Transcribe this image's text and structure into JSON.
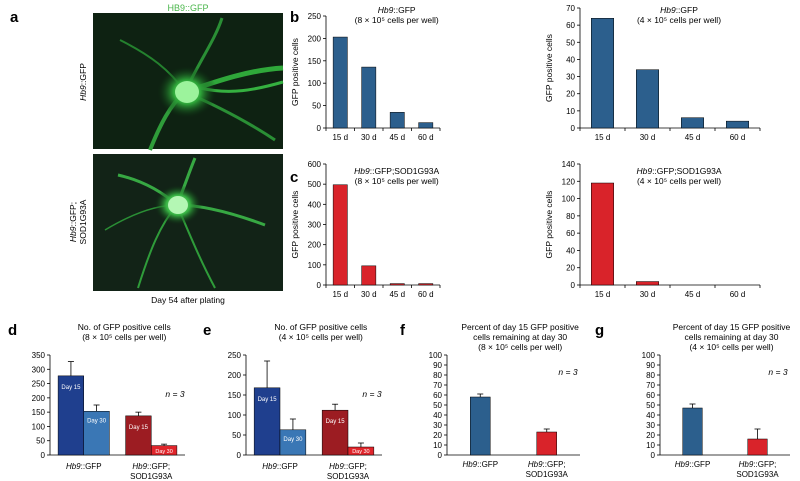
{
  "colors": {
    "blue": "#2c5f8d",
    "red": "#d9232a",
    "darkblue": "#1f3f8e",
    "lightblue": "#3a77b5",
    "darkred": "#9c1c22",
    "brightred": "#e0252b",
    "green": "#49b64a"
  },
  "panels": {
    "a": {
      "letter": "a",
      "top_label": "HB9::GFP",
      "row1_label_italic": "Hb9",
      "row1_label_rest": "::GFP",
      "row2_label_italic": "Hb9",
      "row2_label_rest": "::GFP;",
      "row2_label_line2": "SOD1G93A",
      "caption": "Day 54 after plating"
    },
    "b_letter": "b",
    "c_letter": "c",
    "d_letter": "d",
    "e_letter": "e",
    "f_letter": "f",
    "g_letter": "g"
  },
  "chart_data": [
    {
      "id": "b1",
      "type": "bar",
      "title_italic": "Hb9",
      "title_rest": "::GFP",
      "title_line2": "(8 × 10⁵ cells per well)",
      "ylabel": "GFP positive cells",
      "categories": [
        "15 d",
        "30 d",
        "45 d",
        "60 d"
      ],
      "values": [
        203,
        136,
        35,
        12
      ],
      "ylim": [
        0,
        250
      ],
      "yticks": [
        0,
        50,
        100,
        150,
        200,
        250
      ],
      "color": "blue"
    },
    {
      "id": "b2",
      "type": "bar",
      "title_italic": "Hb9",
      "title_rest": "::GFP",
      "title_line2": "(4 × 10⁵ cells per well)",
      "ylabel": "GFP positive cells",
      "categories": [
        "15 d",
        "30 d",
        "45 d",
        "60 d"
      ],
      "values": [
        64,
        34,
        6,
        4
      ],
      "ylim": [
        0,
        70
      ],
      "yticks": [
        0,
        10,
        20,
        30,
        40,
        50,
        60,
        70
      ],
      "color": "blue"
    },
    {
      "id": "c1",
      "type": "bar",
      "title_italic": "Hb9",
      "title_rest": "::GFP;SOD1G93A",
      "title_line2": "(8 × 10⁵ cells per well)",
      "ylabel": "GFP positive cells",
      "categories": [
        "15 d",
        "30 d",
        "45 d",
        "60 d"
      ],
      "values": [
        497,
        95,
        7,
        7
      ],
      "ylim": [
        0,
        600
      ],
      "yticks": [
        0,
        100,
        200,
        300,
        400,
        500,
        600
      ],
      "color": "red"
    },
    {
      "id": "c2",
      "type": "bar",
      "title_italic": "Hb9",
      "title_rest": "::GFP;SOD1G93A",
      "title_line2": "(4 × 10⁵ cells per well)",
      "ylabel": "GFP positive cells",
      "categories": [
        "15 d",
        "30 d",
        "45 d",
        "60 d"
      ],
      "values": [
        118,
        4,
        0,
        0
      ],
      "ylim": [
        0,
        140
      ],
      "yticks": [
        0,
        20,
        40,
        60,
        80,
        100,
        120,
        140
      ],
      "color": "red"
    },
    {
      "id": "d",
      "type": "bar",
      "title_line1": "No. of GFP positive cells",
      "title_line2": "(8 × 10⁵ cells per well)",
      "n_label": "n = 3",
      "ylim": [
        0,
        350
      ],
      "yticks": [
        0,
        50,
        100,
        150,
        200,
        250,
        300,
        350
      ],
      "groups": [
        {
          "label_italic": "Hb9",
          "label_rest": "::GFP",
          "label_line2": "",
          "bars": [
            {
              "label": "Day 15",
              "value": 277,
              "err": 50,
              "color": "darkblue"
            },
            {
              "label": "Day 30",
              "value": 153,
              "err": 22,
              "color": "lightblue"
            }
          ]
        },
        {
          "label_italic": "Hb9",
          "label_rest": "::GFP;",
          "label_line2": "SOD1G93A",
          "bars": [
            {
              "label": "Day 15",
              "value": 137,
              "err": 13,
              "color": "darkred"
            },
            {
              "label": "Day 30",
              "value": 33,
              "err": 5,
              "color": "brightred"
            }
          ]
        }
      ]
    },
    {
      "id": "e",
      "type": "bar",
      "title_line1": "No. of GFP positive cells",
      "title_line2": "(4 × 10⁵ cells per well)",
      "n_label": "n = 3",
      "ylim": [
        0,
        250
      ],
      "yticks": [
        0,
        50,
        100,
        150,
        200,
        250
      ],
      "groups": [
        {
          "label_italic": "Hb9",
          "label_rest": "::GFP",
          "label_line2": "",
          "bars": [
            {
              "label": "Day 15",
              "value": 168,
              "err": 67,
              "color": "darkblue"
            },
            {
              "label": "Day 30",
              "value": 63,
              "err": 27,
              "color": "lightblue"
            }
          ]
        },
        {
          "label_italic": "Hb9",
          "label_rest": "::GFP;",
          "label_line2": "SOD1G93A",
          "bars": [
            {
              "label": "Day 15",
              "value": 112,
              "err": 15,
              "color": "darkred"
            },
            {
              "label": "Day 30",
              "value": 20,
              "err": 10,
              "color": "brightred"
            }
          ]
        }
      ]
    },
    {
      "id": "f",
      "type": "bar",
      "title_line1": "Percent of day 15 GFP positive",
      "title_line2": "cells remaining at day 30",
      "title_line3": "(8 × 10⁵ cells per well)",
      "n_label": "n = 3",
      "ylim": [
        0,
        100
      ],
      "yticks": [
        0,
        10,
        20,
        30,
        40,
        50,
        60,
        70,
        80,
        90,
        100
      ],
      "categories": [
        {
          "label_italic": "Hb9",
          "label_rest": "::GFP",
          "label_line2": ""
        },
        {
          "label_italic": "Hb9",
          "label_rest": "::GFP;",
          "label_line2": "SOD1G93A"
        }
      ],
      "values": [
        58,
        23
      ],
      "errors": [
        3,
        3
      ],
      "colors": [
        "blue",
        "red"
      ]
    },
    {
      "id": "g",
      "type": "bar",
      "title_line1": "Percent of day 15 GFP positive",
      "title_line2": "cells remaining at day 30",
      "title_line3": "(4 × 10⁵ cells per well)",
      "n_label": "n = 3",
      "ylim": [
        0,
        100
      ],
      "yticks": [
        0,
        10,
        20,
        30,
        40,
        50,
        60,
        70,
        80,
        90,
        100
      ],
      "categories": [
        {
          "label_italic": "Hb9",
          "label_rest": "::GFP",
          "label_line2": ""
        },
        {
          "label_italic": "Hb9",
          "label_rest": "::GFP;",
          "label_line2": "SOD1G93A"
        }
      ],
      "values": [
        47,
        16
      ],
      "errors": [
        4,
        10
      ],
      "colors": [
        "blue",
        "red"
      ]
    }
  ]
}
